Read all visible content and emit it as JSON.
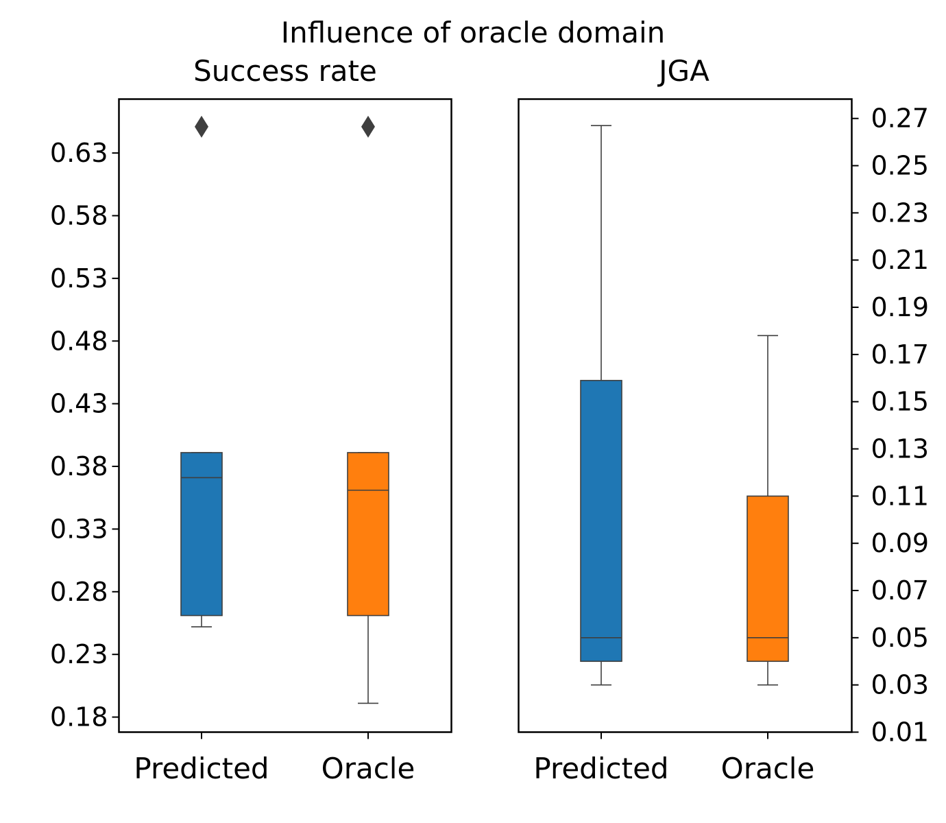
{
  "suptitle": "Influence of oracle domain",
  "colors": {
    "predicted": "#1f77b4",
    "oracle": "#ff7f0e",
    "line": "#3f3f3f",
    "flier": "#3f3f3f"
  },
  "chart_data": [
    {
      "type": "box",
      "title": "Success rate",
      "xlabel": "",
      "ylabel": "",
      "y_axis_side": "left",
      "ylim": [
        0.168,
        0.673
      ],
      "yticks": [
        0.18,
        0.23,
        0.28,
        0.33,
        0.38,
        0.43,
        0.48,
        0.53,
        0.58,
        0.63
      ],
      "ytick_labels": [
        "0.18",
        "0.23",
        "0.28",
        "0.33",
        "0.38",
        "0.43",
        "0.48",
        "0.53",
        "0.58",
        "0.63"
      ],
      "categories": [
        "Predicted",
        "Oracle"
      ],
      "boxes": [
        {
          "category": "Predicted",
          "whisker_low": 0.252,
          "q1": 0.261,
          "median": 0.371,
          "q3": 0.391,
          "whisker_high": 0.391,
          "fliers": [
            0.651
          ]
        },
        {
          "category": "Oracle",
          "whisker_low": 0.191,
          "q1": 0.261,
          "median": 0.361,
          "q3": 0.391,
          "whisker_high": 0.391,
          "fliers": [
            0.651
          ]
        }
      ]
    },
    {
      "type": "box",
      "title": "JGA",
      "xlabel": "",
      "ylabel": "",
      "y_axis_side": "right",
      "ylim": [
        0.01,
        0.2782
      ],
      "yticks": [
        0.01,
        0.03,
        0.05,
        0.07,
        0.09,
        0.11,
        0.13,
        0.15,
        0.17,
        0.19,
        0.21,
        0.23,
        0.25,
        0.27
      ],
      "ytick_labels": [
        "0.01",
        "0.03",
        "0.05",
        "0.07",
        "0.09",
        "0.11",
        "0.13",
        "0.15",
        "0.17",
        "0.19",
        "0.21",
        "0.23",
        "0.25",
        "0.27"
      ],
      "categories": [
        "Predicted",
        "Oracle"
      ],
      "boxes": [
        {
          "category": "Predicted",
          "whisker_low": 0.03,
          "q1": 0.04,
          "median": 0.05,
          "q3": 0.159,
          "whisker_high": 0.267,
          "fliers": []
        },
        {
          "category": "Oracle",
          "whisker_low": 0.03,
          "q1": 0.04,
          "median": 0.05,
          "q3": 0.11,
          "whisker_high": 0.178,
          "fliers": []
        }
      ]
    }
  ]
}
